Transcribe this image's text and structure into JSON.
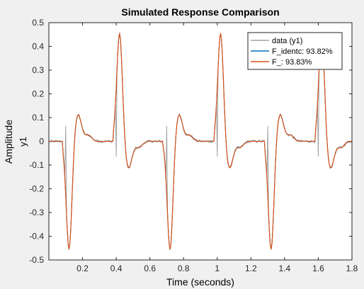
{
  "chart_data": {
    "type": "line",
    "title": "Simulated Response Comparison",
    "xlabel": "Time (seconds)",
    "ylabel_outer": "Amplitude",
    "ylabel_inner": "y1",
    "xlim": [
      0,
      1.8
    ],
    "ylim": [
      -0.5,
      0.5
    ],
    "xticks": [
      0.2,
      0.4,
      0.6,
      0.8,
      1.0,
      1.2,
      1.4,
      1.6,
      1.8
    ],
    "xtick_labels": [
      "0.2",
      "0.4",
      "0.6",
      "0.8",
      "1",
      "1.2",
      "1.4",
      "1.6",
      "1.8"
    ],
    "yticks": [
      -0.5,
      -0.4,
      -0.3,
      -0.2,
      -0.1,
      0,
      0.1,
      0.2,
      0.3,
      0.4,
      0.5
    ],
    "ytick_labels": [
      "-0.5",
      "-0.4",
      "-0.3",
      "-0.2",
      "-0.1",
      "0",
      "0.1",
      "0.2",
      "0.3",
      "0.4",
      "0.5"
    ],
    "grid": false,
    "legend_position": "top-right",
    "pulse_train": {
      "sample_interval": 0.005,
      "events": [
        {
          "t": 0.1,
          "sign": -1
        },
        {
          "t": 0.4,
          "sign": 1
        },
        {
          "t": 0.7,
          "sign": -1
        },
        {
          "t": 1.0,
          "sign": 1
        },
        {
          "t": 1.3,
          "sign": -1
        },
        {
          "t": 1.6,
          "sign": 1
        }
      ],
      "peak": 0.46,
      "rebound": 0.115,
      "undershoot": 0.025
    },
    "series": [
      {
        "name": "data (y1)",
        "color": "#a0a0a0"
      },
      {
        "name": "F_identc: 93.82%",
        "color": "#0072bd"
      },
      {
        "name": "F_: 93.83%",
        "color": "#d95319"
      }
    ]
  }
}
